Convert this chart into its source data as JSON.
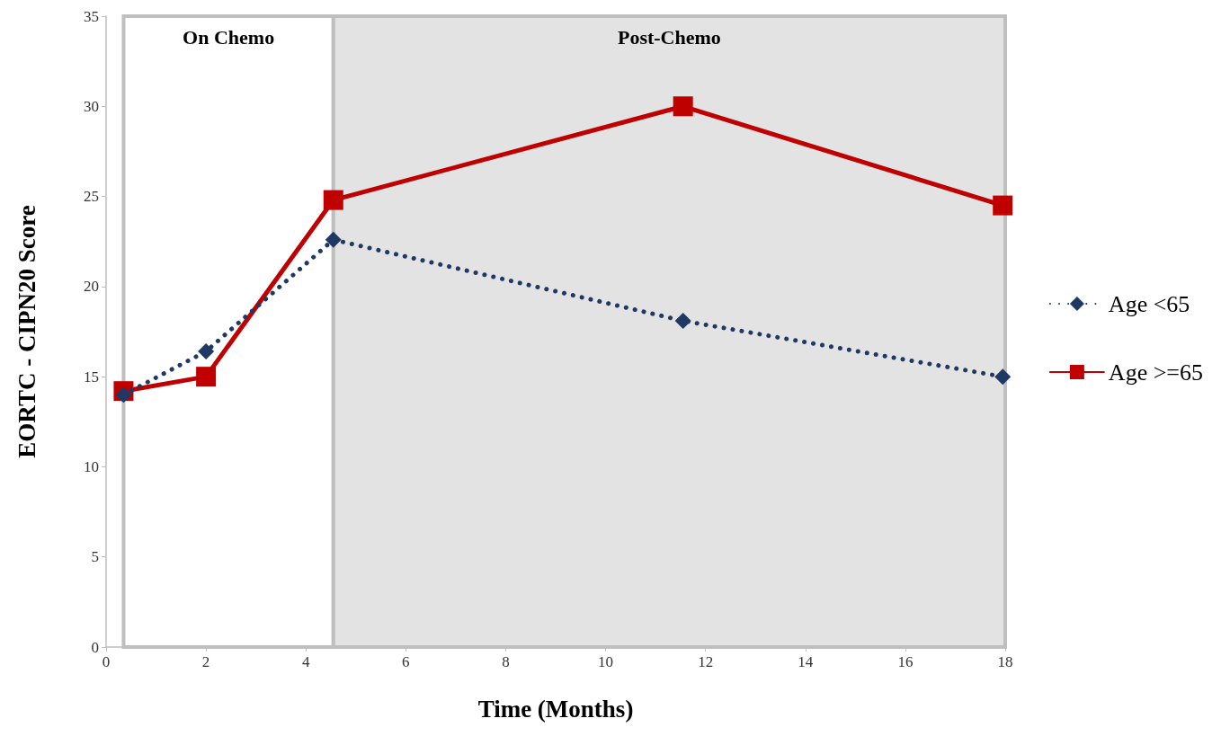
{
  "chart_data": {
    "type": "line",
    "xlabel": "Time (Months)",
    "ylabel": "EORTC - CIPN20 Score",
    "xlim": [
      0,
      18
    ],
    "xticks": [
      0,
      2,
      4,
      6,
      8,
      10,
      12,
      14,
      16,
      18
    ],
    "ylim": [
      0,
      35
    ],
    "yticks": [
      0,
      5,
      10,
      15,
      20,
      25,
      30,
      35
    ],
    "grid": false,
    "legend": "right",
    "bands": [
      {
        "axis": "x",
        "from": 0.35,
        "to": 4.55,
        "label": "On Chemo",
        "color": "#ffffff"
      },
      {
        "axis": "x",
        "from": 4.55,
        "to": 18,
        "label": "Post-Chemo",
        "color": "#e3e3e3"
      }
    ],
    "series": [
      {
        "name": "Age <65",
        "color": "#1f3864",
        "marker": "diamond",
        "line_style": "dotted",
        "x": [
          0.35,
          2,
          4.55,
          11.55,
          17.95
        ],
        "values": [
          14.0,
          16.4,
          22.6,
          18.1,
          15.0
        ]
      },
      {
        "name": "Age >=65",
        "color": "#c00000",
        "marker": "square",
        "line_style": "solid",
        "x": [
          0.35,
          2,
          4.55,
          11.55,
          17.95
        ],
        "values": [
          14.2,
          15.0,
          24.8,
          30.0,
          24.5
        ]
      }
    ]
  }
}
